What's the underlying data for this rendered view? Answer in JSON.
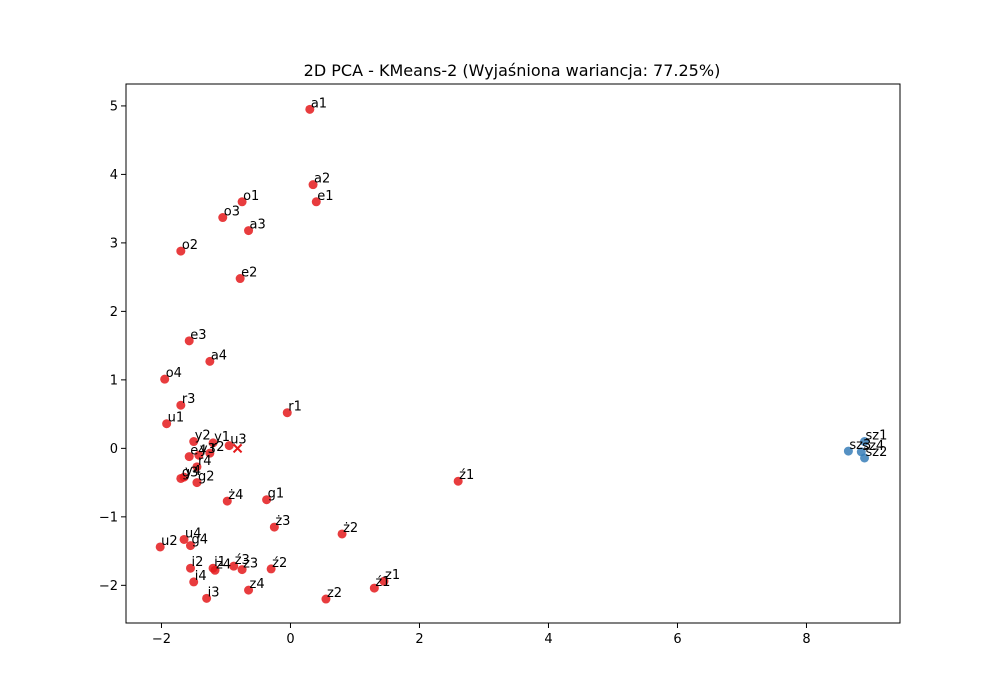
{
  "chart_data": {
    "type": "scatter",
    "title": "2D PCA - KMeans-2 (Wyjaśniona wariancja: 77.25%)",
    "xlabel": "",
    "ylabel": "",
    "xlim": [
      -2.55,
      9.45
    ],
    "ylim": [
      -2.55,
      5.32
    ],
    "xticks": [
      -2,
      0,
      2,
      4,
      6,
      8
    ],
    "yticks": [
      -2,
      -1,
      0,
      1,
      2,
      3,
      4,
      5
    ],
    "grid": false,
    "colors": {
      "cluster0": "#e41a1c",
      "cluster1": "#377eb8",
      "centroid": "#e41a1c"
    },
    "centroids": [
      {
        "x": -0.82,
        "y": 0.0
      }
    ],
    "series": [
      {
        "cluster": 0,
        "points": [
          {
            "label": "a1",
            "x": 0.3,
            "y": 4.95
          },
          {
            "label": "a2",
            "x": 0.35,
            "y": 3.85
          },
          {
            "label": "e1",
            "x": 0.4,
            "y": 3.6
          },
          {
            "label": "o1",
            "x": -0.75,
            "y": 3.6
          },
          {
            "label": "o3",
            "x": -1.05,
            "y": 3.37
          },
          {
            "label": "a3",
            "x": -0.65,
            "y": 3.18
          },
          {
            "label": "o2",
            "x": -1.7,
            "y": 2.88
          },
          {
            "label": "e2",
            "x": -0.78,
            "y": 2.48
          },
          {
            "label": "e3",
            "x": -1.57,
            "y": 1.57
          },
          {
            "label": "a4",
            "x": -1.25,
            "y": 1.27
          },
          {
            "label": "o4",
            "x": -1.95,
            "y": 1.01
          },
          {
            "label": "r3",
            "x": -1.7,
            "y": 0.63
          },
          {
            "label": "r1",
            "x": -0.05,
            "y": 0.52
          },
          {
            "label": "u1",
            "x": -1.92,
            "y": 0.36
          },
          {
            "label": "y2",
            "x": -1.5,
            "y": 0.1
          },
          {
            "label": "y1",
            "x": -1.2,
            "y": 0.08
          },
          {
            "label": "u3",
            "x": -0.95,
            "y": 0.04
          },
          {
            "label": "r2",
            "x": -1.25,
            "y": -0.07
          },
          {
            "label": "e4",
            "x": -1.57,
            "y": -0.12
          },
          {
            "label": "y3",
            "x": -1.42,
            "y": -0.1
          },
          {
            "label": "r4",
            "x": -1.45,
            "y": -0.27
          },
          {
            "label": "y4",
            "x": -1.65,
            "y": -0.42
          },
          {
            "label": "g3",
            "x": -1.7,
            "y": -0.44
          },
          {
            "label": "g2",
            "x": -1.45,
            "y": -0.5
          },
          {
            "label": "ź1",
            "x": 2.6,
            "y": -0.48
          },
          {
            "label": "ż4",
            "x": -0.98,
            "y": -0.77
          },
          {
            "label": "g1",
            "x": -0.37,
            "y": -0.75
          },
          {
            "label": "ż3",
            "x": -0.25,
            "y": -1.15
          },
          {
            "label": "ż2",
            "x": 0.8,
            "y": -1.25
          },
          {
            "label": "u4",
            "x": -1.65,
            "y": -1.33
          },
          {
            "label": "g4",
            "x": -1.55,
            "y": -1.42
          },
          {
            "label": "u2",
            "x": -2.02,
            "y": -1.44
          },
          {
            "label": "i2",
            "x": -1.55,
            "y": -1.75
          },
          {
            "label": "i1",
            "x": -1.2,
            "y": -1.75
          },
          {
            "label": "ź3",
            "x": -0.88,
            "y": -1.72
          },
          {
            "label": "z4",
            "x": -1.17,
            "y": -1.78
          },
          {
            "label": "z3",
            "x": -0.75,
            "y": -1.77
          },
          {
            "label": "ź2",
            "x": -0.3,
            "y": -1.76
          },
          {
            "label": "i4",
            "x": -1.5,
            "y": -1.95
          },
          {
            "label": "z4",
            "x": -0.65,
            "y": -2.07
          },
          {
            "label": "z1",
            "x": 1.45,
            "y": -1.94
          },
          {
            "label": "ź1",
            "x": 1.3,
            "y": -2.04
          },
          {
            "label": "z2",
            "x": 0.55,
            "y": -2.2
          },
          {
            "label": "i3",
            "x": -1.3,
            "y": -2.19
          }
        ]
      },
      {
        "cluster": 1,
        "points": [
          {
            "label": "sz1",
            "x": 8.9,
            "y": 0.1
          },
          {
            "label": "sz3",
            "x": 8.65,
            "y": -0.04
          },
          {
            "label": "sz4",
            "x": 8.85,
            "y": -0.05
          },
          {
            "label": "sz2",
            "x": 8.9,
            "y": -0.14
          }
        ]
      }
    ]
  }
}
